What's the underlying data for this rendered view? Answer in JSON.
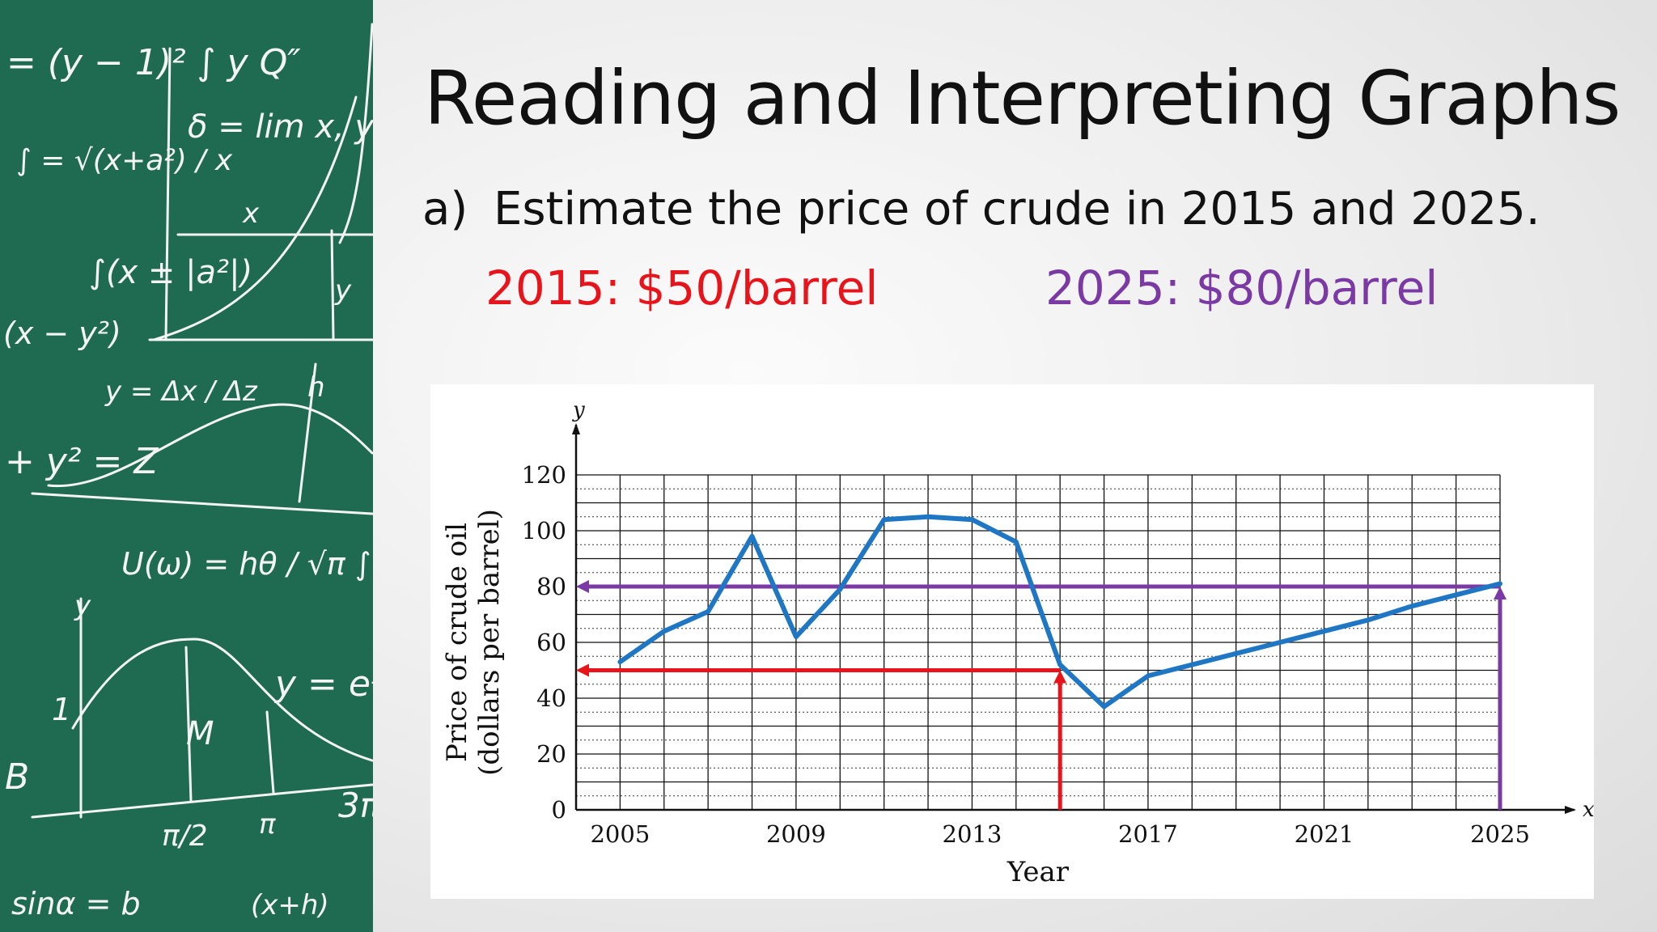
{
  "slide": {
    "title": "Reading and Interpreting Graphs",
    "question_label": "a)",
    "question_text": "Estimate the price of crude in 2015 and 2025.",
    "answer_2015": "2015: $50/barrel",
    "answer_2025": "2025: $80/barrel",
    "colors": {
      "answer_2015": "#e8141c",
      "answer_2025": "#7b3aa3",
      "board": "#1f6b52"
    }
  },
  "board": {
    "formulas": [
      "= (y − 1)² ∫ y Q″",
      "∫ = √(x+a²) / x",
      "δ = lim x, y→∞",
      "x",
      "∫(x ± |a²|)",
      "(x − y²)",
      "y",
      "y = Δx / Δz",
      "+ y² = Z",
      "h",
      "U(ω) = hθ / √π ∫ e⁻ʰᵛ",
      "y",
      "y = eˢ",
      "M",
      "B",
      "1",
      "π/2",
      "π",
      "3π",
      "sinα = b",
      "(x+h)"
    ]
  },
  "chart_data": {
    "type": "line",
    "xlabel": "Year",
    "ylabel_line1": "Price of crude oil",
    "ylabel_line2": "(dollars per barrel)",
    "x_axis_letter": "x",
    "y_axis_letter": "y",
    "xlim": [
      2004,
      2025
    ],
    "ylim": [
      0,
      120
    ],
    "x_tick_labels": [
      "2005",
      "2009",
      "2013",
      "2017",
      "2021",
      "2025"
    ],
    "y_tick_labels": [
      "0",
      "20",
      "40",
      "60",
      "80",
      "100",
      "120"
    ],
    "grid": true,
    "series": [
      {
        "color": "#1f77c4",
        "x": [
          2005,
          2006,
          2007,
          2008,
          2009,
          2010,
          2011,
          2012,
          2013,
          2014,
          2015,
          2016,
          2017,
          2018,
          2019,
          2020,
          2021,
          2022,
          2023,
          2024,
          2025
        ],
        "y": [
          53,
          64,
          71,
          98,
          62,
          79,
          104,
          105,
          104,
          96,
          52,
          37,
          48,
          52,
          56,
          60,
          64,
          68,
          73,
          77,
          81
        ]
      }
    ],
    "annotations": [
      {
        "x": 2015,
        "y": 50,
        "color": "#e8141c"
      },
      {
        "x": 2025,
        "y": 80,
        "color": "#7b3aa3"
      }
    ]
  }
}
